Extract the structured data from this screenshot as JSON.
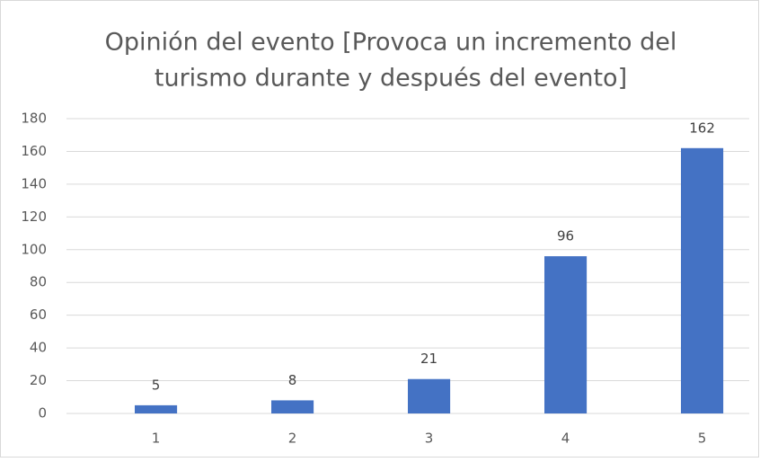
{
  "chart_data": {
    "type": "bar",
    "title_lines": [
      "Opinión del evento [Provoca un incremento del",
      "turismo durante y después del evento]"
    ],
    "categories": [
      "1",
      "2",
      "3",
      "4",
      "5"
    ],
    "values": [
      5,
      8,
      21,
      96,
      162
    ],
    "color": "#4472c4",
    "ylim": [
      0,
      180
    ],
    "yticks": [
      0,
      20,
      40,
      60,
      80,
      100,
      120,
      140,
      160,
      180
    ],
    "grid": true,
    "data_labels": true
  }
}
